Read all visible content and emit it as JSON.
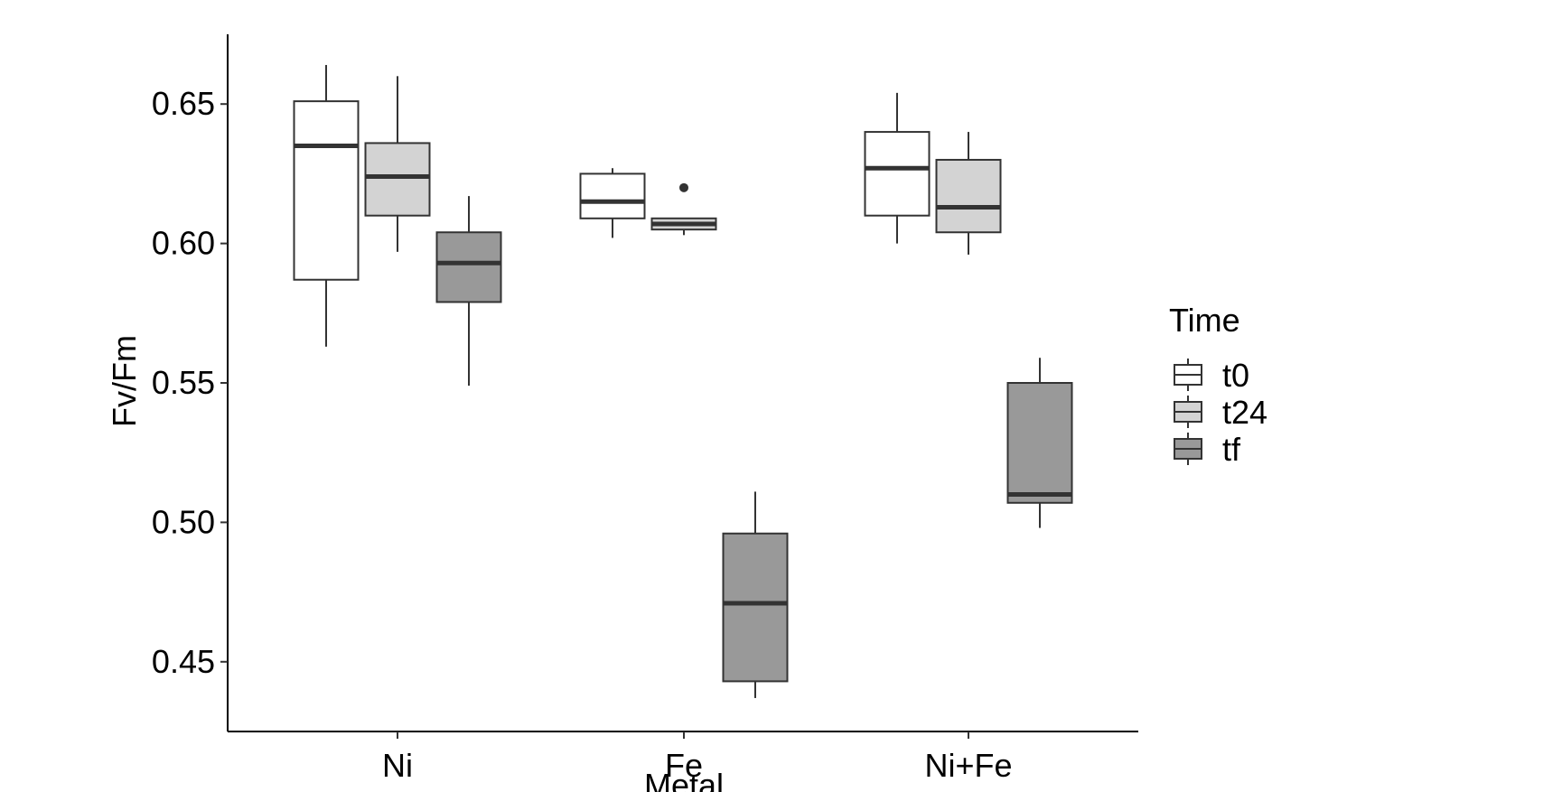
{
  "chart_data": {
    "type": "boxplot",
    "title": "",
    "xlabel": "Metal",
    "ylabel": "Fv/Fm",
    "categories": [
      "Ni",
      "Fe",
      "Ni+Fe"
    ],
    "yticks": [
      "0.45",
      "0.50",
      "0.55",
      "0.60",
      "0.65"
    ],
    "ytick_values": [
      0.45,
      0.5,
      0.55,
      0.6,
      0.65
    ],
    "ylim": [
      0.425,
      0.675
    ],
    "grid": false,
    "legend": {
      "title": "Time",
      "placement": "right",
      "entries": [
        "t0",
        "t24",
        "tf"
      ]
    },
    "series": [
      {
        "name": "t0",
        "color": "#ffffff",
        "boxes": [
          {
            "category": "Ni",
            "whisker_low": 0.563,
            "q1": 0.587,
            "median": 0.635,
            "q3": 0.651,
            "whisker_high": 0.664,
            "outliers": []
          },
          {
            "category": "Fe",
            "whisker_low": 0.602,
            "q1": 0.609,
            "median": 0.615,
            "q3": 0.625,
            "whisker_high": 0.627,
            "outliers": []
          },
          {
            "category": "Ni+Fe",
            "whisker_low": 0.6,
            "q1": 0.61,
            "median": 0.627,
            "q3": 0.64,
            "whisker_high": 0.654,
            "outliers": []
          }
        ]
      },
      {
        "name": "t24",
        "color": "#d3d3d3",
        "boxes": [
          {
            "category": "Ni",
            "whisker_low": 0.597,
            "q1": 0.61,
            "median": 0.624,
            "q3": 0.636,
            "whisker_high": 0.66,
            "outliers": []
          },
          {
            "category": "Fe",
            "whisker_low": 0.603,
            "q1": 0.605,
            "median": 0.607,
            "q3": 0.609,
            "whisker_high": 0.609,
            "outliers": [
              0.62
            ]
          },
          {
            "category": "Ni+Fe",
            "whisker_low": 0.596,
            "q1": 0.604,
            "median": 0.613,
            "q3": 0.63,
            "whisker_high": 0.64,
            "outliers": []
          }
        ]
      },
      {
        "name": "tf",
        "color": "#999999",
        "boxes": [
          {
            "category": "Ni",
            "whisker_low": 0.549,
            "q1": 0.579,
            "median": 0.593,
            "q3": 0.604,
            "whisker_high": 0.617,
            "outliers": []
          },
          {
            "category": "Fe",
            "whisker_low": 0.437,
            "q1": 0.443,
            "median": 0.471,
            "q3": 0.496,
            "whisker_high": 0.511,
            "outliers": []
          },
          {
            "category": "Ni+Fe",
            "whisker_low": 0.498,
            "q1": 0.507,
            "median": 0.51,
            "q3": 0.55,
            "whisker_high": 0.559,
            "outliers": []
          }
        ]
      }
    ]
  }
}
